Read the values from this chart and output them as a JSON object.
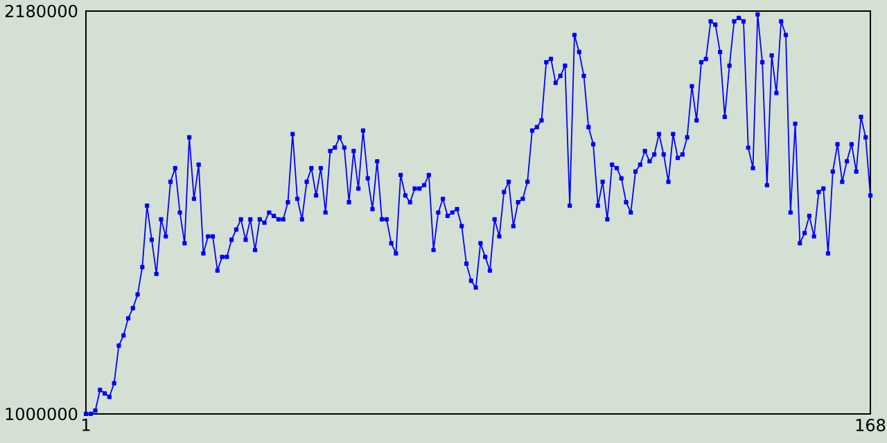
{
  "chart_data": {
    "type": "line",
    "color": "#0000ff",
    "marker": "square",
    "line_style": "solid",
    "xlim": [
      1,
      168
    ],
    "xticks": [
      1,
      168
    ],
    "ylim": [
      1000000,
      2180000
    ],
    "yticks": [
      1000000,
      2180000
    ],
    "x": [
      1,
      2,
      3,
      4,
      5,
      6,
      7,
      8,
      9,
      10,
      11,
      12,
      13,
      14,
      15,
      16,
      17,
      18,
      19,
      20,
      21,
      22,
      23,
      24,
      25,
      26,
      27,
      28,
      29,
      30,
      31,
      32,
      33,
      34,
      35,
      36,
      37,
      38,
      39,
      40,
      41,
      42,
      43,
      44,
      45,
      46,
      47,
      48,
      49,
      50,
      51,
      52,
      53,
      54,
      55,
      56,
      57,
      58,
      59,
      60,
      61,
      62,
      63,
      64,
      65,
      66,
      67,
      68,
      69,
      70,
      71,
      72,
      73,
      74,
      75,
      76,
      77,
      78,
      79,
      80,
      81,
      82,
      83,
      84,
      85,
      86,
      87,
      88,
      89,
      90,
      91,
      92,
      93,
      94,
      95,
      96,
      97,
      98,
      99,
      100,
      101,
      102,
      103,
      104,
      105,
      106,
      107,
      108,
      109,
      110,
      111,
      112,
      113,
      114,
      115,
      116,
      117,
      118,
      119,
      120,
      121,
      122,
      123,
      124,
      125,
      126,
      127,
      128,
      129,
      130,
      131,
      132,
      133,
      134,
      135,
      136,
      137,
      138,
      139,
      140,
      141,
      142,
      143,
      144,
      145,
      146,
      147,
      148,
      149,
      150,
      151,
      152,
      153,
      154,
      155,
      156,
      157,
      158,
      159,
      160,
      161,
      162,
      163,
      164,
      165,
      166,
      167,
      168
    ],
    "values": [
      1000000,
      1000000,
      1010000,
      1070000,
      1060000,
      1050000,
      1090000,
      1200000,
      1230000,
      1280000,
      1310000,
      1350000,
      1430000,
      1610000,
      1510000,
      1410000,
      1570000,
      1520000,
      1680000,
      1720000,
      1590000,
      1500000,
      1810000,
      1630000,
      1730000,
      1470000,
      1520000,
      1520000,
      1420000,
      1460000,
      1460000,
      1510000,
      1540000,
      1570000,
      1510000,
      1570000,
      1480000,
      1570000,
      1560000,
      1590000,
      1580000,
      1570000,
      1570000,
      1620000,
      1820000,
      1630000,
      1570000,
      1680000,
      1720000,
      1640000,
      1720000,
      1590000,
      1770000,
      1780000,
      1810000,
      1780000,
      1620000,
      1770000,
      1660000,
      1830000,
      1690000,
      1600000,
      1740000,
      1570000,
      1570000,
      1500000,
      1470000,
      1700000,
      1640000,
      1620000,
      1660000,
      1660000,
      1670000,
      1700000,
      1480000,
      1590000,
      1630000,
      1580000,
      1590000,
      1600000,
      1550000,
      1440000,
      1390000,
      1370000,
      1500000,
      1460000,
      1420000,
      1570000,
      1520000,
      1650000,
      1680000,
      1550000,
      1620000,
      1630000,
      1680000,
      1830000,
      1840000,
      1860000,
      2030000,
      2040000,
      1970000,
      1990000,
      2020000,
      1610000,
      2110000,
      2060000,
      1990000,
      1840000,
      1790000,
      1610000,
      1680000,
      1570000,
      1730000,
      1720000,
      1690000,
      1620000,
      1590000,
      1710000,
      1730000,
      1770000,
      1740000,
      1760000,
      1820000,
      1760000,
      1680000,
      1820000,
      1750000,
      1760000,
      1810000,
      1960000,
      1860000,
      2030000,
      2040000,
      2150000,
      2140000,
      2060000,
      1870000,
      2020000,
      2150000,
      2160000,
      2150000,
      1780000,
      1720000,
      2170000,
      2030000,
      1670000,
      2050000,
      1940000,
      2150000,
      2110000,
      1590000,
      1850000,
      1500000,
      1530000,
      1580000,
      1520000,
      1650000,
      1660000,
      1470000,
      1710000,
      1790000,
      1680000,
      1740000,
      1790000,
      1710000,
      1870000,
      1810000,
      1640000
    ]
  }
}
